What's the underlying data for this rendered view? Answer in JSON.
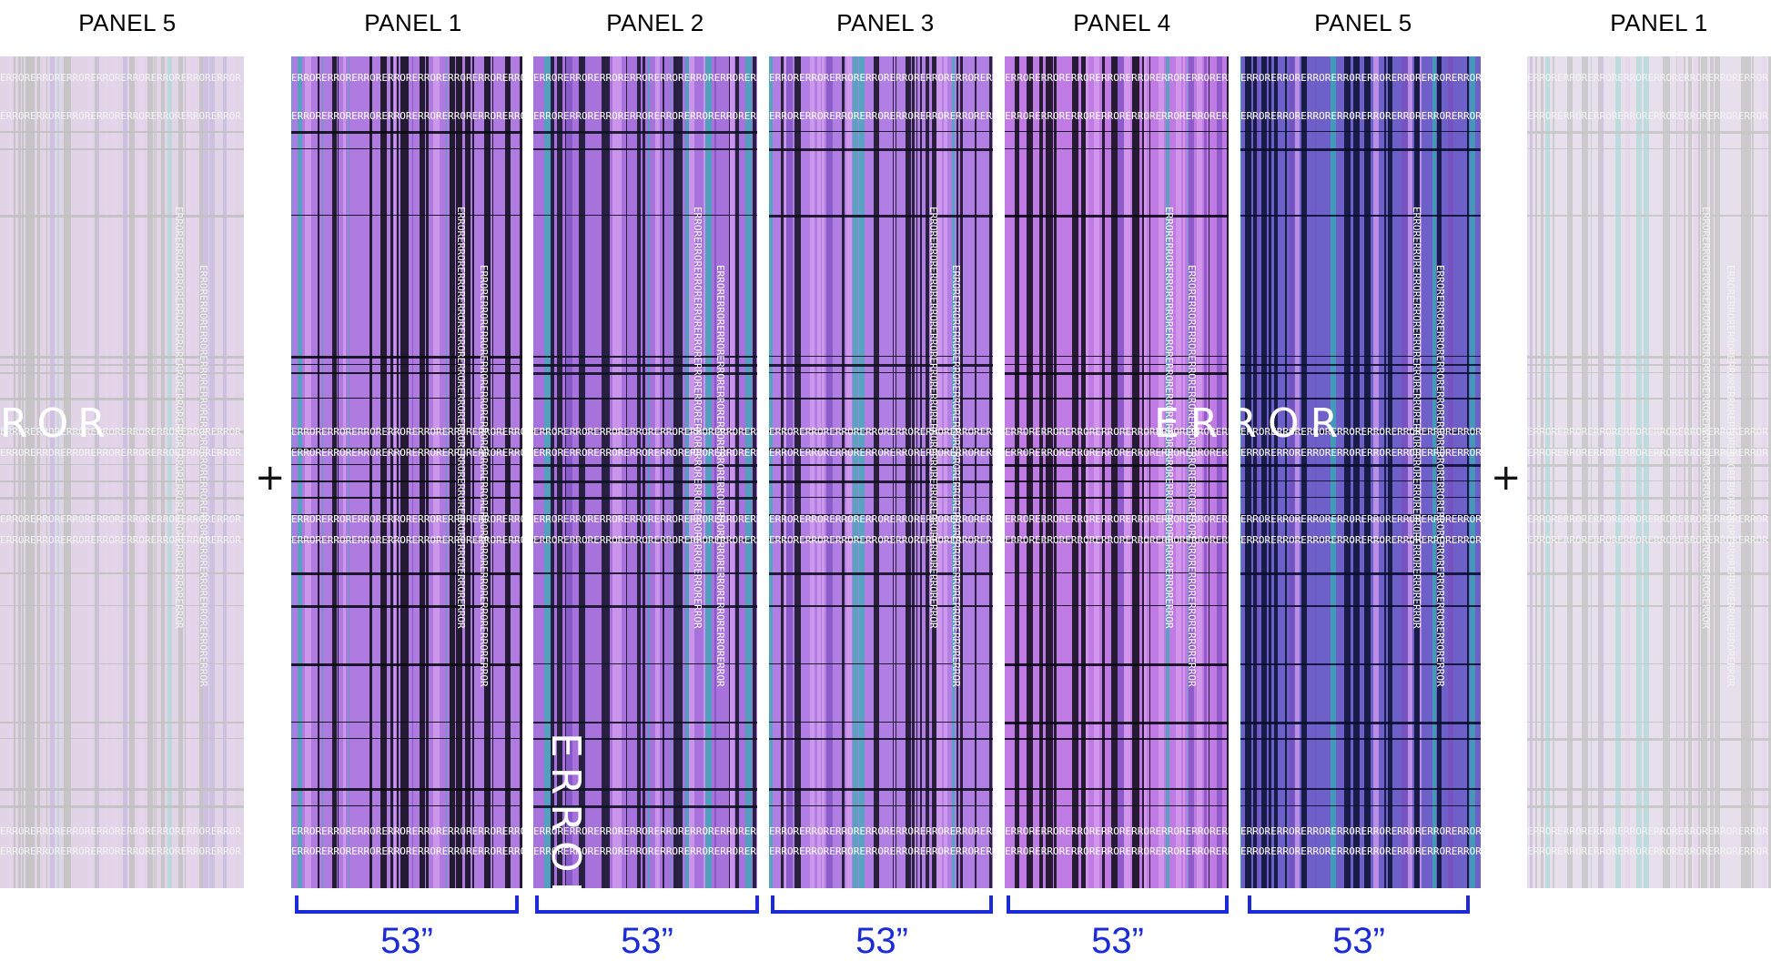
{
  "panels": [
    {
      "label": "PANEL 5",
      "style": "faded-gray",
      "base": "#c9a3d8",
      "dark": "#6d6d6d"
    },
    {
      "label": "PANEL 1",
      "style": "full",
      "base": "#b07be0",
      "dark": "#0b0b12"
    },
    {
      "label": "PANEL 2",
      "style": "full",
      "base": "#a872dc",
      "dark": "#101224"
    },
    {
      "label": "PANEL 3",
      "style": "full",
      "base": "#b17fe3",
      "dark": "#120f1f"
    },
    {
      "label": "PANEL 4",
      "style": "full",
      "base": "#c07ae3",
      "dark": "#0a0a14"
    },
    {
      "label": "PANEL 5",
      "style": "full",
      "base": "#6e60c9",
      "dark": "#0a1030"
    },
    {
      "label": "PANEL 1",
      "style": "faded-gray",
      "base": "#ddc4ea",
      "dark": "#7c7c7c"
    }
  ],
  "plus_sign": "+",
  "measurement": "53”",
  "pattern_word": "ERROR",
  "big_error_left": "ROR",
  "big_error_center": "ERROR",
  "big_error_vertical": "ERROR",
  "colors": {
    "accent": "#1b2bd6",
    "teal": "#2fb3b0"
  }
}
